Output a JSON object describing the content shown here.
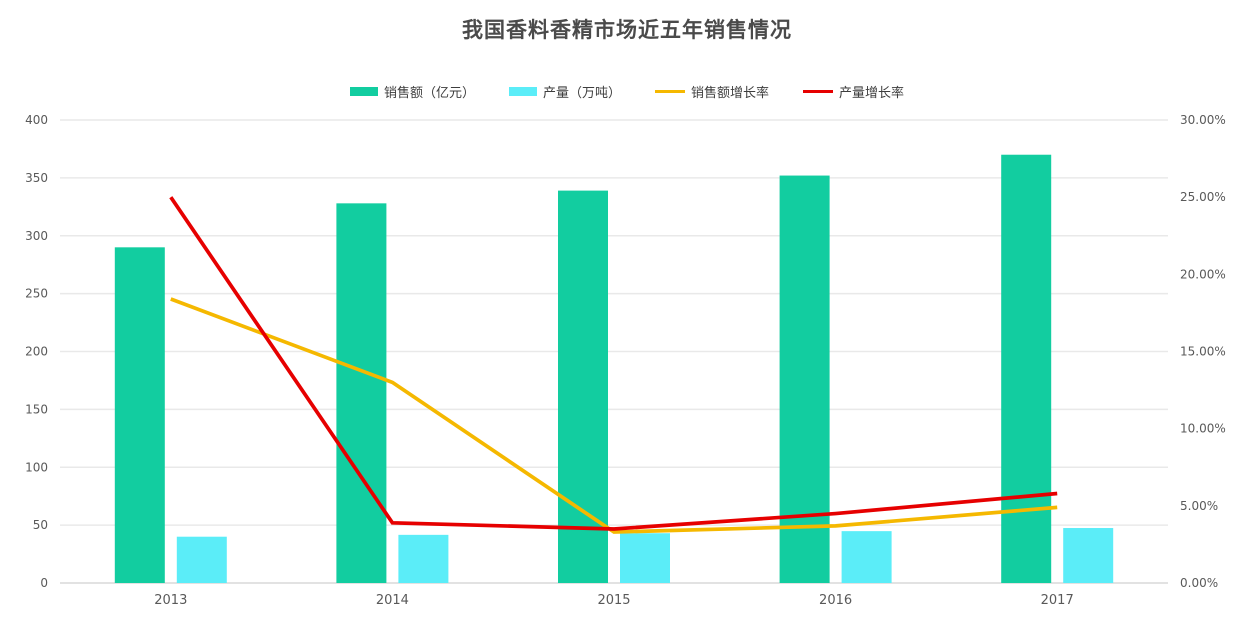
{
  "title": "我国香料香精市场近五年销售情况",
  "colors": {
    "sales_bar": "#12cda0",
    "output_bar": "#5bedf8",
    "sales_growth_line": "#f5b800",
    "output_growth_line": "#e60000",
    "grid_line": "#e9e9e9",
    "baseline": "#d9d9d9",
    "axis_text": "#595959",
    "title_text": "#4a4a4a",
    "legend_text": "#3d3d3d"
  },
  "legend": {
    "items": [
      {
        "label": "销售额（亿元）",
        "type": "bar",
        "series_key": "sales"
      },
      {
        "label": "产量（万吨）",
        "type": "bar",
        "series_key": "output"
      },
      {
        "label": "销售额增长率",
        "type": "line",
        "series_key": "sales_growth"
      },
      {
        "label": "产量增长率",
        "type": "line",
        "series_key": "output_growth"
      }
    ]
  },
  "chart_data": {
    "type": "combo",
    "title": "我国香料香精市场近五年销售情况",
    "categories": [
      "2013",
      "2014",
      "2015",
      "2016",
      "2017"
    ],
    "series": [
      {
        "name": "销售额（亿元）",
        "key": "sales",
        "kind": "bar",
        "axis": "left",
        "color": "#12cda0",
        "values": [
          290,
          328,
          339,
          352,
          370
        ]
      },
      {
        "name": "产量（万吨）",
        "key": "output",
        "kind": "bar",
        "axis": "left",
        "color": "#5bedf8",
        "values": [
          40,
          41.6,
          43,
          44.8,
          47.5
        ]
      },
      {
        "name": "销售额增长率",
        "key": "sales_growth",
        "kind": "line",
        "axis": "right",
        "color": "#f5b800",
        "values": [
          18.4,
          13.0,
          3.3,
          3.7,
          4.9
        ]
      },
      {
        "name": "产量增长率",
        "key": "output_growth",
        "kind": "line",
        "axis": "right",
        "color": "#e60000",
        "values": [
          25.0,
          3.9,
          3.5,
          4.5,
          5.8
        ]
      }
    ],
    "left_axis": {
      "min": 0,
      "max": 400,
      "step": 50,
      "tick_labels": [
        "400",
        "350",
        "300",
        "250",
        "200",
        "150",
        "100",
        "50",
        "0"
      ]
    },
    "right_axis": {
      "min": 0,
      "max": 30,
      "step": 5,
      "unit": "%",
      "tick_labels": [
        "30.00%",
        "25.00%",
        "20.00%",
        "15.00%",
        "10.00%",
        "5.00%",
        "0.00%"
      ]
    },
    "grid": true,
    "legend_position": "top"
  }
}
